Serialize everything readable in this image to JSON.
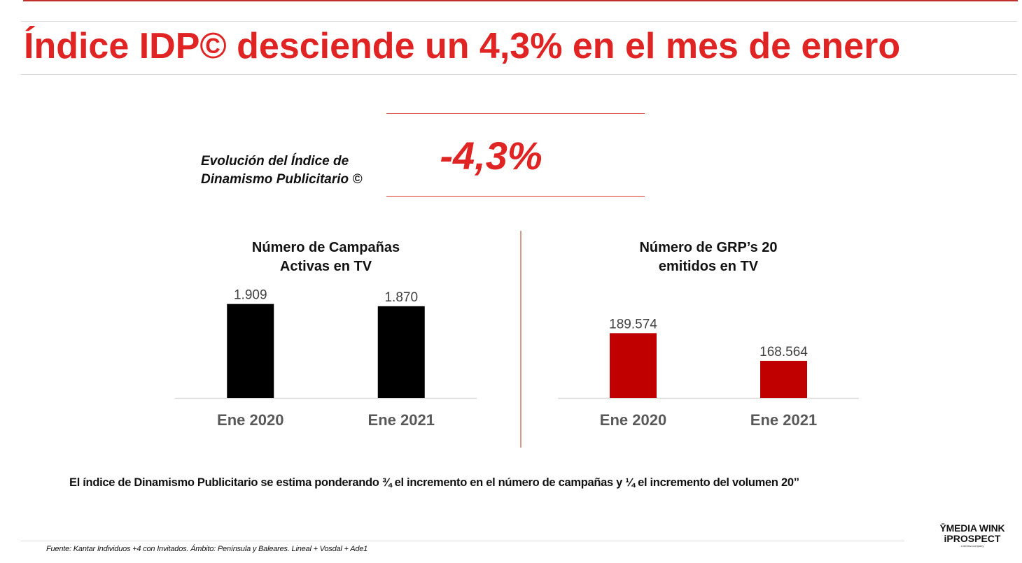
{
  "header": {
    "title": "Índice IDP© desciende un 4,3% en el mes de enero"
  },
  "kpi": {
    "label_line1": "Evolución del Índice de",
    "label_line2": "Dinamismo Publicitario ©",
    "value": "-4,3%"
  },
  "colors": {
    "brand_red": "#e02424",
    "bar_black": "#000000",
    "bar_red": "#c00000",
    "axis_label_gray": "#595959",
    "value_label_gray": "#404040"
  },
  "chart_data": [
    {
      "type": "bar",
      "title": "Número de Campañas Activas en TV",
      "title_lines": [
        "Número de Campañas",
        "Activas en TV"
      ],
      "categories": [
        "Ene 2020",
        "Ene 2021"
      ],
      "values": [
        1909,
        1870
      ],
      "value_labels": [
        "1.909",
        "1.870"
      ],
      "color": "#000000",
      "xlabel": "",
      "ylabel": "",
      "ylim": [
        271,
        2100
      ],
      "grid": false,
      "legend": "none"
    },
    {
      "type": "bar",
      "title": "Número de GRP’s 20 emitidos en TV",
      "title_lines": [
        "Número de GRP’s 20",
        "emitidos en TV"
      ],
      "categories": [
        "Ene 2020",
        "Ene 2021"
      ],
      "values": [
        189574,
        168564
      ],
      "value_labels": [
        "189.574",
        "168.564"
      ],
      "color": "#c00000",
      "xlabel": "",
      "ylabel": "",
      "ylim": [
        140402,
        220000
      ],
      "grid": false,
      "legend": "none"
    }
  ],
  "footnote": {
    "text": "El índice de Dinamismo Publicitario se estima ponderando ¾ el incremento en el número de campañas y ¼ el incremento del volumen 20’’"
  },
  "source": {
    "text": "Fuente: Kantar Individuos +4 con Invitados. Ámbito: Península y Baleares. Lineal + Vosdal + Ade1"
  },
  "logo": {
    "line1": "ȲMEDIA WINK",
    "line2": "iPROSPECT",
    "line3": "a dentsu company"
  }
}
